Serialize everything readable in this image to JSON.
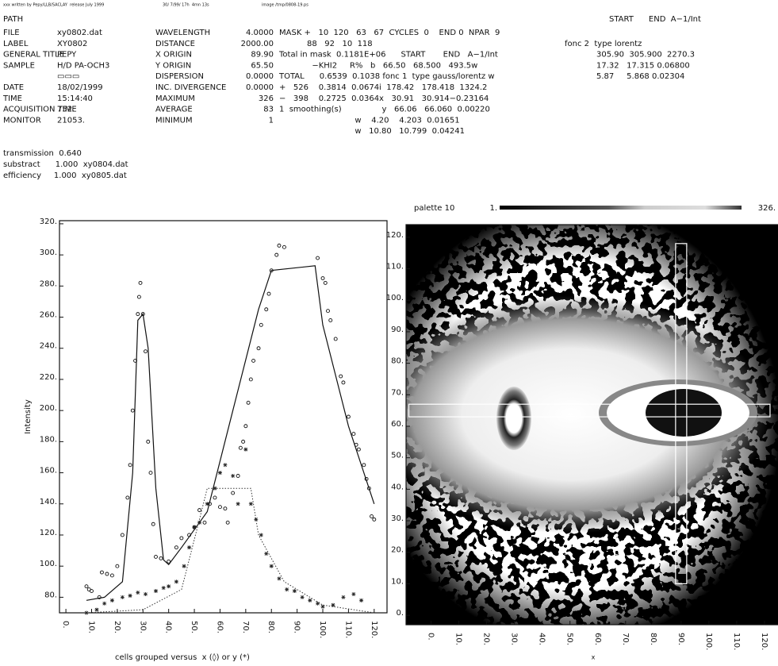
{
  "header": {
    "banner": [
      "xxx written by Pepy/LLB/SACLAY  release July 1999",
      "30/ 7/99/ 17h  4mn 13s",
      "image /tmp/0808-19.ps"
    ],
    "rows": [
      {
        "label": "PATH",
        "right": "START      END  A−1/Int"
      },
      {
        "label": "FILE",
        "value": "xy0802.dat",
        "param": "WAVELENGTH",
        "param_value": "4.0000",
        "extra": "MASK +   10  120   63   67  CYCLES  0    END 0  NPAR  9"
      },
      {
        "label": "LABEL",
        "value": "XY0802",
        "param": "DISTANCE",
        "param_value": "2000.00",
        "extra": "           88   92   10  118",
        "right": "fonc 2  type lorentz"
      },
      {
        "label": "GENERAL TITLE",
        "value": "PEPY",
        "param": "X ORIGIN",
        "param_value": "89.90",
        "extra": "Total in mask  0.1181E+06      START       END   A−1/Int",
        "right": "305.90  305.900  2270.3"
      },
      {
        "label": "SAMPLE",
        "value": "H/D PA-OCH3",
        "param": "Y ORIGIN",
        "param_value": "65.50",
        "extra": "             −KHI2     R%   b   66.50   68.500   493.5w",
        "right": "17.32   17.315 0.06800"
      },
      {
        "value": "▭▭▭",
        "param": "DISPERSION",
        "param_value": "0.0000",
        "extra": "TOTAL      0.6539  0.1038 fonc 1  type gauss/lorentz w",
        "right": "5.87     5.868 0.02304"
      },
      {
        "label": "DATE",
        "value": "18/02/1999",
        "param": "INC. DIVERGENCE",
        "param_value": "0.0000",
        "extra": "+   526    0.3814  0.0674i  178.42   178.418  1324.2"
      },
      {
        "label": "TIME",
        "value": "15:14:40",
        "param": "MAXIMUM",
        "param_value": "326",
        "extra": "−   398    0.2725  0.0364x   30.91   30.914−0.23164"
      },
      {
        "label": "ACQUISITION TIME",
        "value": "752.",
        "param": "AVERAGE",
        "param_value": "83",
        "extra": "1  smoothing(s)                y   66.06   66.060  0.00220"
      },
      {
        "label": "MONITOR",
        "value": "21053.",
        "param": "MINIMUM",
        "param_value": "1",
        "extra": "                              w    4.20    4.203  0.01651"
      },
      {
        "extra": "                              w   10.80   10.799  0.04241"
      }
    ],
    "notes": [
      "transmission  0.640",
      "substract      1.000  xy0804.dat",
      "efficiency     1.000  xy0805.dat"
    ]
  },
  "chart_data": [
    {
      "type": "line",
      "ylabel": "Intensity",
      "xlabel": "cells grouped versus  x (◊) or y (*)",
      "xlim": [
        -2.5,
        125
      ],
      "ylim": [
        70,
        322
      ],
      "xticks": [
        {
          "value": 0,
          "label": "0."
        },
        {
          "value": 10,
          "label": "10."
        },
        {
          "value": 20,
          "label": "20."
        },
        {
          "value": 30,
          "label": "30."
        },
        {
          "value": 40,
          "label": "40."
        },
        {
          "value": 50,
          "label": "50."
        },
        {
          "value": 60,
          "label": "60."
        },
        {
          "value": 70,
          "label": "70."
        },
        {
          "value": 80,
          "label": "80."
        },
        {
          "value": 90,
          "label": "90."
        },
        {
          "value": 100,
          "label": "100."
        },
        {
          "value": 110,
          "label": "110."
        },
        {
          "value": 120,
          "label": "120."
        }
      ],
      "yticks": [
        {
          "value": 80,
          "label": "80."
        },
        {
          "value": 100,
          "label": "100."
        },
        {
          "value": 120,
          "label": "120."
        },
        {
          "value": 140,
          "label": "140."
        },
        {
          "value": 160,
          "label": "160."
        },
        {
          "value": 180,
          "label": "180."
        },
        {
          "value": 200,
          "label": "200."
        },
        {
          "value": 220,
          "label": "220."
        },
        {
          "value": 240,
          "label": "240."
        },
        {
          "value": 260,
          "label": "260."
        },
        {
          "value": 280,
          "label": "280."
        },
        {
          "value": 300,
          "label": "300."
        },
        {
          "value": 320,
          "label": "320."
        }
      ],
      "series": [
        {
          "marker": "circle",
          "color": "#111",
          "x": [
            8,
            9,
            10,
            13,
            14,
            16,
            18,
            20,
            22,
            24,
            25,
            26,
            27,
            28,
            28.5,
            29,
            30,
            31,
            32,
            33,
            34,
            35,
            37,
            40,
            43,
            45,
            48,
            50,
            52,
            54,
            56,
            58,
            60,
            62,
            63,
            65,
            67,
            68,
            69,
            70,
            71,
            72,
            73,
            75,
            76,
            78,
            79,
            80,
            82,
            83,
            85,
            98,
            100,
            101,
            102,
            103,
            105,
            107,
            108,
            110,
            112,
            113,
            114,
            116,
            117,
            118,
            119,
            120
          ],
          "values": [
            87,
            85,
            84,
            80,
            96,
            95,
            94,
            100,
            120,
            144,
            165,
            200,
            232,
            262,
            273,
            282,
            262,
            238,
            180,
            160,
            127,
            106,
            105,
            103,
            112,
            118,
            120,
            125,
            136,
            128,
            140,
            144,
            138,
            137,
            128,
            147,
            158,
            176,
            180,
            190,
            205,
            220,
            232,
            240,
            255,
            265,
            275,
            290,
            300,
            306,
            305,
            298,
            285,
            282,
            264,
            258,
            246,
            222,
            218,
            196,
            185,
            178,
            175,
            165,
            156,
            150,
            132,
            130
          ]
        },
        {
          "marker": "line",
          "color": "#111",
          "x": [
            8,
            15,
            22,
            26,
            28,
            30,
            32,
            35,
            38,
            40,
            45,
            55,
            65,
            75,
            80,
            97,
            100,
            110,
            115,
            120
          ],
          "values": [
            78,
            80,
            90,
            160,
            258,
            262,
            240,
            150,
            104,
            101,
            112,
            135,
            200,
            265,
            290,
            293,
            255,
            190,
            165,
            140
          ]
        },
        {
          "marker": "star",
          "color": "#222",
          "x": [
            8,
            12,
            15,
            18,
            22,
            25,
            28,
            31,
            35,
            38,
            40,
            43,
            46,
            48,
            50,
            52,
            55,
            58,
            60,
            62,
            65,
            67,
            70,
            72,
            74,
            76,
            78,
            80,
            83,
            86,
            89,
            92,
            95,
            98,
            100,
            104,
            108,
            112,
            115
          ],
          "values": [
            70,
            72,
            76,
            78,
            80,
            81,
            83,
            82,
            84,
            86,
            87,
            90,
            100,
            112,
            125,
            128,
            140,
            150,
            160,
            165,
            158,
            140,
            175,
            140,
            130,
            120,
            108,
            100,
            92,
            85,
            84,
            80,
            78,
            76,
            74,
            75,
            80,
            82,
            78
          ]
        },
        {
          "marker": "dotted",
          "color": "#333",
          "x": [
            8,
            30,
            45,
            52,
            55,
            72,
            75,
            85,
            100,
            120
          ],
          "values": [
            70,
            72,
            85,
            130,
            150,
            150,
            120,
            90,
            75,
            70
          ]
        }
      ]
    },
    {
      "type": "heatmap",
      "palette": "palette 10",
      "palette_min": "1.",
      "palette_max": "326.",
      "xlabel": "x",
      "xlim": [
        -9,
        126
      ],
      "ylim": [
        -3,
        124
      ],
      "xticks": [
        {
          "value": 0,
          "label": "0."
        },
        {
          "value": 10,
          "label": "10."
        },
        {
          "value": 20,
          "label": "20."
        },
        {
          "value": 30,
          "label": "30."
        },
        {
          "value": 40,
          "label": "40."
        },
        {
          "value": 50,
          "label": "50."
        },
        {
          "value": 60,
          "label": "60."
        },
        {
          "value": 70,
          "label": "70."
        },
        {
          "value": 80,
          "label": "80."
        },
        {
          "value": 90,
          "label": "90."
        },
        {
          "value": 100,
          "label": "100."
        },
        {
          "value": 110,
          "label": "110."
        },
        {
          "value": 120,
          "label": "120."
        }
      ],
      "yticks": [
        {
          "value": 0,
          "label": "0."
        },
        {
          "value": 10,
          "label": "10."
        },
        {
          "value": 20,
          "label": "20."
        },
        {
          "value": 30,
          "label": "30."
        },
        {
          "value": 40,
          "label": "40."
        },
        {
          "value": 50,
          "label": "50."
        },
        {
          "value": 60,
          "label": "60."
        },
        {
          "value": 70,
          "label": "70."
        },
        {
          "value": 80,
          "label": "80."
        },
        {
          "value": 90,
          "label": "90."
        },
        {
          "value": 100,
          "label": "100."
        },
        {
          "value": 110,
          "label": "110."
        },
        {
          "value": 120,
          "label": "120."
        }
      ],
      "masks": [
        {
          "x": [
            -8,
            122
          ],
          "y": [
            63,
            67
          ]
        },
        {
          "x": [
            88,
            92
          ],
          "y": [
            10,
            118
          ]
        }
      ]
    }
  ]
}
